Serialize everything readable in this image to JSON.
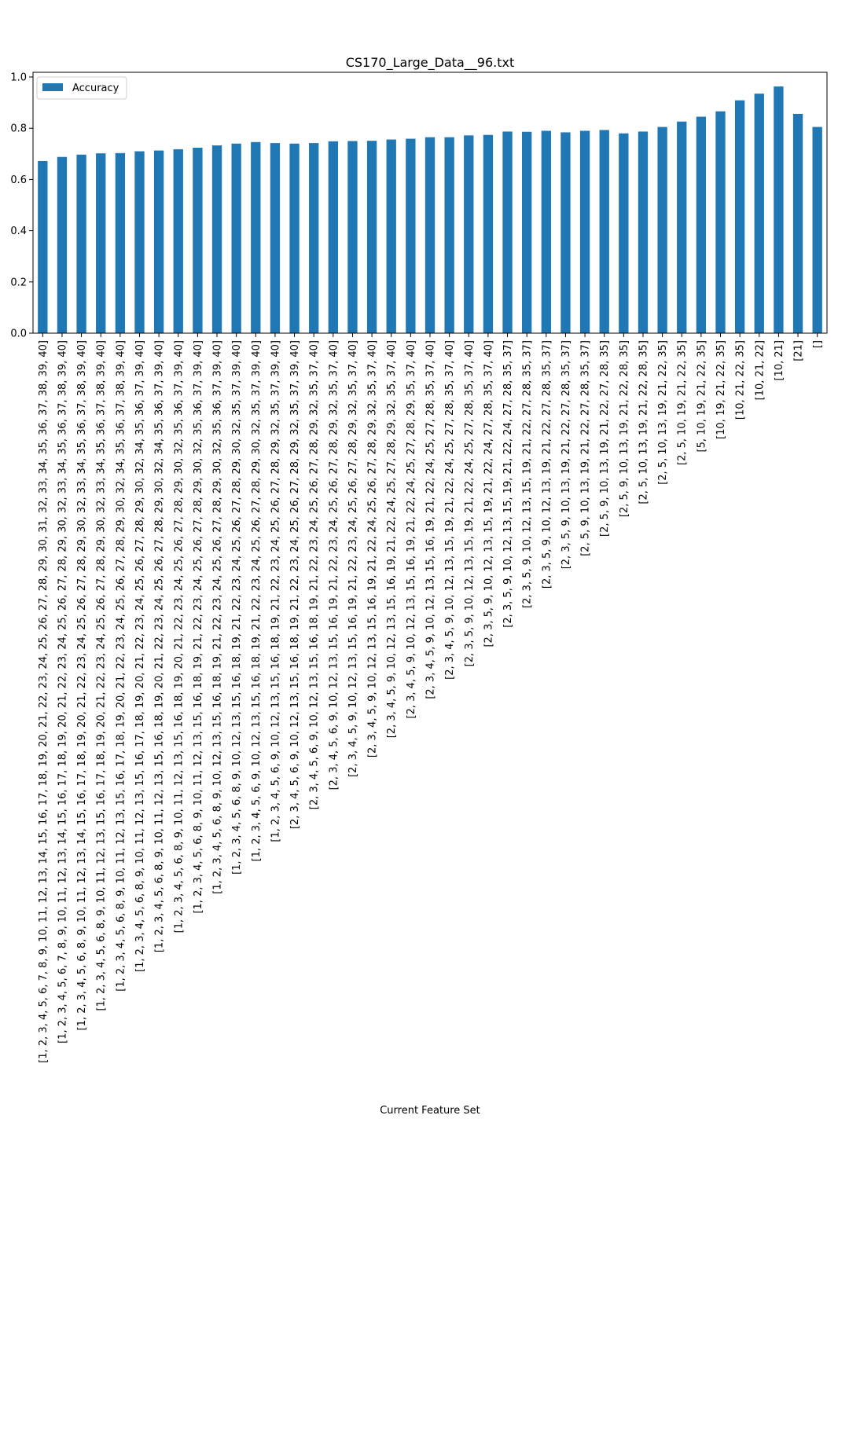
{
  "chart_data": {
    "type": "bar",
    "title": "CS170_Large_Data__96.txt",
    "xlabel": "Current Feature Set",
    "ylabel": "",
    "ylim": [
      0,
      1.0
    ],
    "yticks": [
      "0.0",
      "0.2",
      "0.4",
      "0.6",
      "0.8",
      "1.0"
    ],
    "legend": {
      "position": "top-left",
      "label": "Accuracy"
    },
    "bar_color": "#1f77b4",
    "categories": [
      "[1, 2, 3, 4, 5, 6, 7, 8, 9, 10, 11, 12, 13, 14, 15, 16, 17, 18, 19, 20, 21, 22, 23, 24, 25, 26, 27, 28, 29, 30, 31, 32, 33, 34, 35, 36, 37, 38, 39, 40]",
      "[1, 2, 3, 4, 5, 6, 7, 8, 9, 10, 11, 12, 13, 14, 15, 16, 17, 18, 19, 20, 21, 22, 23, 24, 25, 26, 27, 28, 29, 30, 32, 33, 34, 35, 36, 37, 38, 39, 40]",
      "[1, 2, 3, 4, 5, 6, 8, 9, 10, 11, 12, 13, 14, 15, 16, 17, 18, 19, 20, 21, 22, 23, 24, 25, 26, 27, 28, 29, 30, 32, 33, 34, 35, 36, 37, 38, 39, 40]",
      "[1, 2, 3, 4, 5, 6, 8, 9, 10, 11, 12, 13, 15, 16, 17, 18, 19, 20, 21, 22, 23, 24, 25, 26, 27, 28, 29, 30, 32, 33, 34, 35, 36, 37, 38, 39, 40]",
      "[1, 2, 3, 4, 5, 6, 8, 9, 10, 11, 12, 13, 15, 16, 17, 18, 19, 20, 21, 22, 23, 24, 25, 26, 27, 28, 29, 30, 32, 34, 35, 36, 37, 38, 39, 40]",
      "[1, 2, 3, 4, 5, 6, 8, 9, 10, 11, 12, 13, 15, 16, 17, 18, 19, 20, 21, 22, 23, 24, 25, 26, 27, 28, 29, 30, 32, 34, 35, 36, 37, 39, 40]",
      "[1, 2, 3, 4, 5, 6, 8, 9, 10, 11, 12, 13, 15, 16, 18, 19, 20, 21, 22, 23, 24, 25, 26, 27, 28, 29, 30, 32, 34, 35, 36, 37, 39, 40]",
      "[1, 2, 3, 4, 5, 6, 8, 9, 10, 11, 12, 13, 15, 16, 18, 19, 20, 21, 22, 23, 24, 25, 26, 27, 28, 29, 30, 32, 35, 36, 37, 39, 40]",
      "[1, 2, 3, 4, 5, 6, 8, 9, 10, 11, 12, 13, 15, 16, 18, 19, 21, 22, 23, 24, 25, 26, 27, 28, 29, 30, 32, 35, 36, 37, 39, 40]",
      "[1, 2, 3, 4, 5, 6, 8, 9, 10, 12, 13, 15, 16, 18, 19, 21, 22, 23, 24, 25, 26, 27, 28, 29, 30, 32, 35, 36, 37, 39, 40]",
      "[1, 2, 3, 4, 5, 6, 8, 9, 10, 12, 13, 15, 16, 18, 19, 21, 22, 23, 24, 25, 26, 27, 28, 29, 30, 32, 35, 37, 39, 40]",
      "[1, 2, 3, 4, 5, 6, 9, 10, 12, 13, 15, 16, 18, 19, 21, 22, 23, 24, 25, 26, 27, 28, 29, 30, 32, 35, 37, 39, 40]",
      "[1, 2, 3, 4, 5, 6, 9, 10, 12, 13, 15, 16, 18, 19, 21, 22, 23, 24, 25, 26, 27, 28, 29, 32, 35, 37, 39, 40]",
      "[2, 3, 4, 5, 6, 9, 10, 12, 13, 15, 16, 18, 19, 21, 22, 23, 24, 25, 26, 27, 28, 29, 32, 35, 37, 39, 40]",
      "[2, 3, 4, 5, 6, 9, 10, 12, 13, 15, 16, 18, 19, 21, 22, 23, 24, 25, 26, 27, 28, 29, 32, 35, 37, 40]",
      "[2, 3, 4, 5, 6, 9, 10, 12, 13, 15, 16, 19, 21, 22, 23, 24, 25, 26, 27, 28, 29, 32, 35, 37, 40]",
      "[2, 3, 4, 5, 9, 10, 12, 13, 15, 16, 19, 21, 22, 23, 24, 25, 26, 27, 28, 29, 32, 35, 37, 40]",
      "[2, 3, 4, 5, 9, 10, 12, 13, 15, 16, 19, 21, 22, 24, 25, 26, 27, 28, 29, 32, 35, 37, 40]",
      "[2, 3, 4, 5, 9, 10, 12, 13, 15, 16, 19, 21, 22, 24, 25, 27, 28, 29, 32, 35, 37, 40]",
      "[2, 3, 4, 5, 9, 10, 12, 13, 15, 16, 19, 21, 22, 24, 25, 27, 28, 29, 35, 37, 40]",
      "[2, 3, 4, 5, 9, 10, 12, 13, 15, 16, 19, 21, 22, 24, 25, 27, 28, 35, 37, 40]",
      "[2, 3, 4, 5, 9, 10, 12, 13, 15, 19, 21, 22, 24, 25, 27, 28, 35, 37, 40]",
      "[2, 3, 5, 9, 10, 12, 13, 15, 19, 21, 22, 24, 25, 27, 28, 35, 37, 40]",
      "[2, 3, 5, 9, 10, 12, 13, 15, 19, 21, 22, 24, 27, 28, 35, 37, 40]",
      "[2, 3, 5, 9, 10, 12, 13, 15, 19, 21, 22, 24, 27, 28, 35, 37]",
      "[2, 3, 5, 9, 10, 12, 13, 15, 19, 21, 22, 27, 28, 35, 37]",
      "[2, 3, 5, 9, 10, 12, 13, 19, 21, 22, 27, 28, 35, 37]",
      "[2, 3, 5, 9, 10, 13, 19, 21, 22, 27, 28, 35, 37]",
      "[2, 5, 9, 10, 13, 19, 21, 22, 27, 28, 35, 37]",
      "[2, 5, 9, 10, 13, 19, 21, 22, 27, 28, 35]",
      "[2, 5, 9, 10, 13, 19, 21, 22, 28, 35]",
      "[2, 5, 10, 13, 19, 21, 22, 28, 35]",
      "[2, 5, 10, 13, 19, 21, 22, 35]",
      "[2, 5, 10, 19, 21, 22, 35]",
      "[5, 10, 19, 21, 22, 35]",
      "[10, 19, 21, 22, 35]",
      "[10, 21, 22, 35]",
      "[10, 21, 22]",
      "[10, 21]",
      "[21]",
      "[]"
    ],
    "values": [
      0.672,
      0.688,
      0.697,
      0.702,
      0.703,
      0.71,
      0.713,
      0.718,
      0.724,
      0.733,
      0.74,
      0.746,
      0.742,
      0.74,
      0.742,
      0.749,
      0.75,
      0.751,
      0.756,
      0.759,
      0.765,
      0.765,
      0.772,
      0.774,
      0.787,
      0.786,
      0.79,
      0.784,
      0.79,
      0.793,
      0.78,
      0.787,
      0.805,
      0.826,
      0.845,
      0.866,
      0.909,
      0.935,
      0.963,
      0.856,
      0.805
    ]
  }
}
